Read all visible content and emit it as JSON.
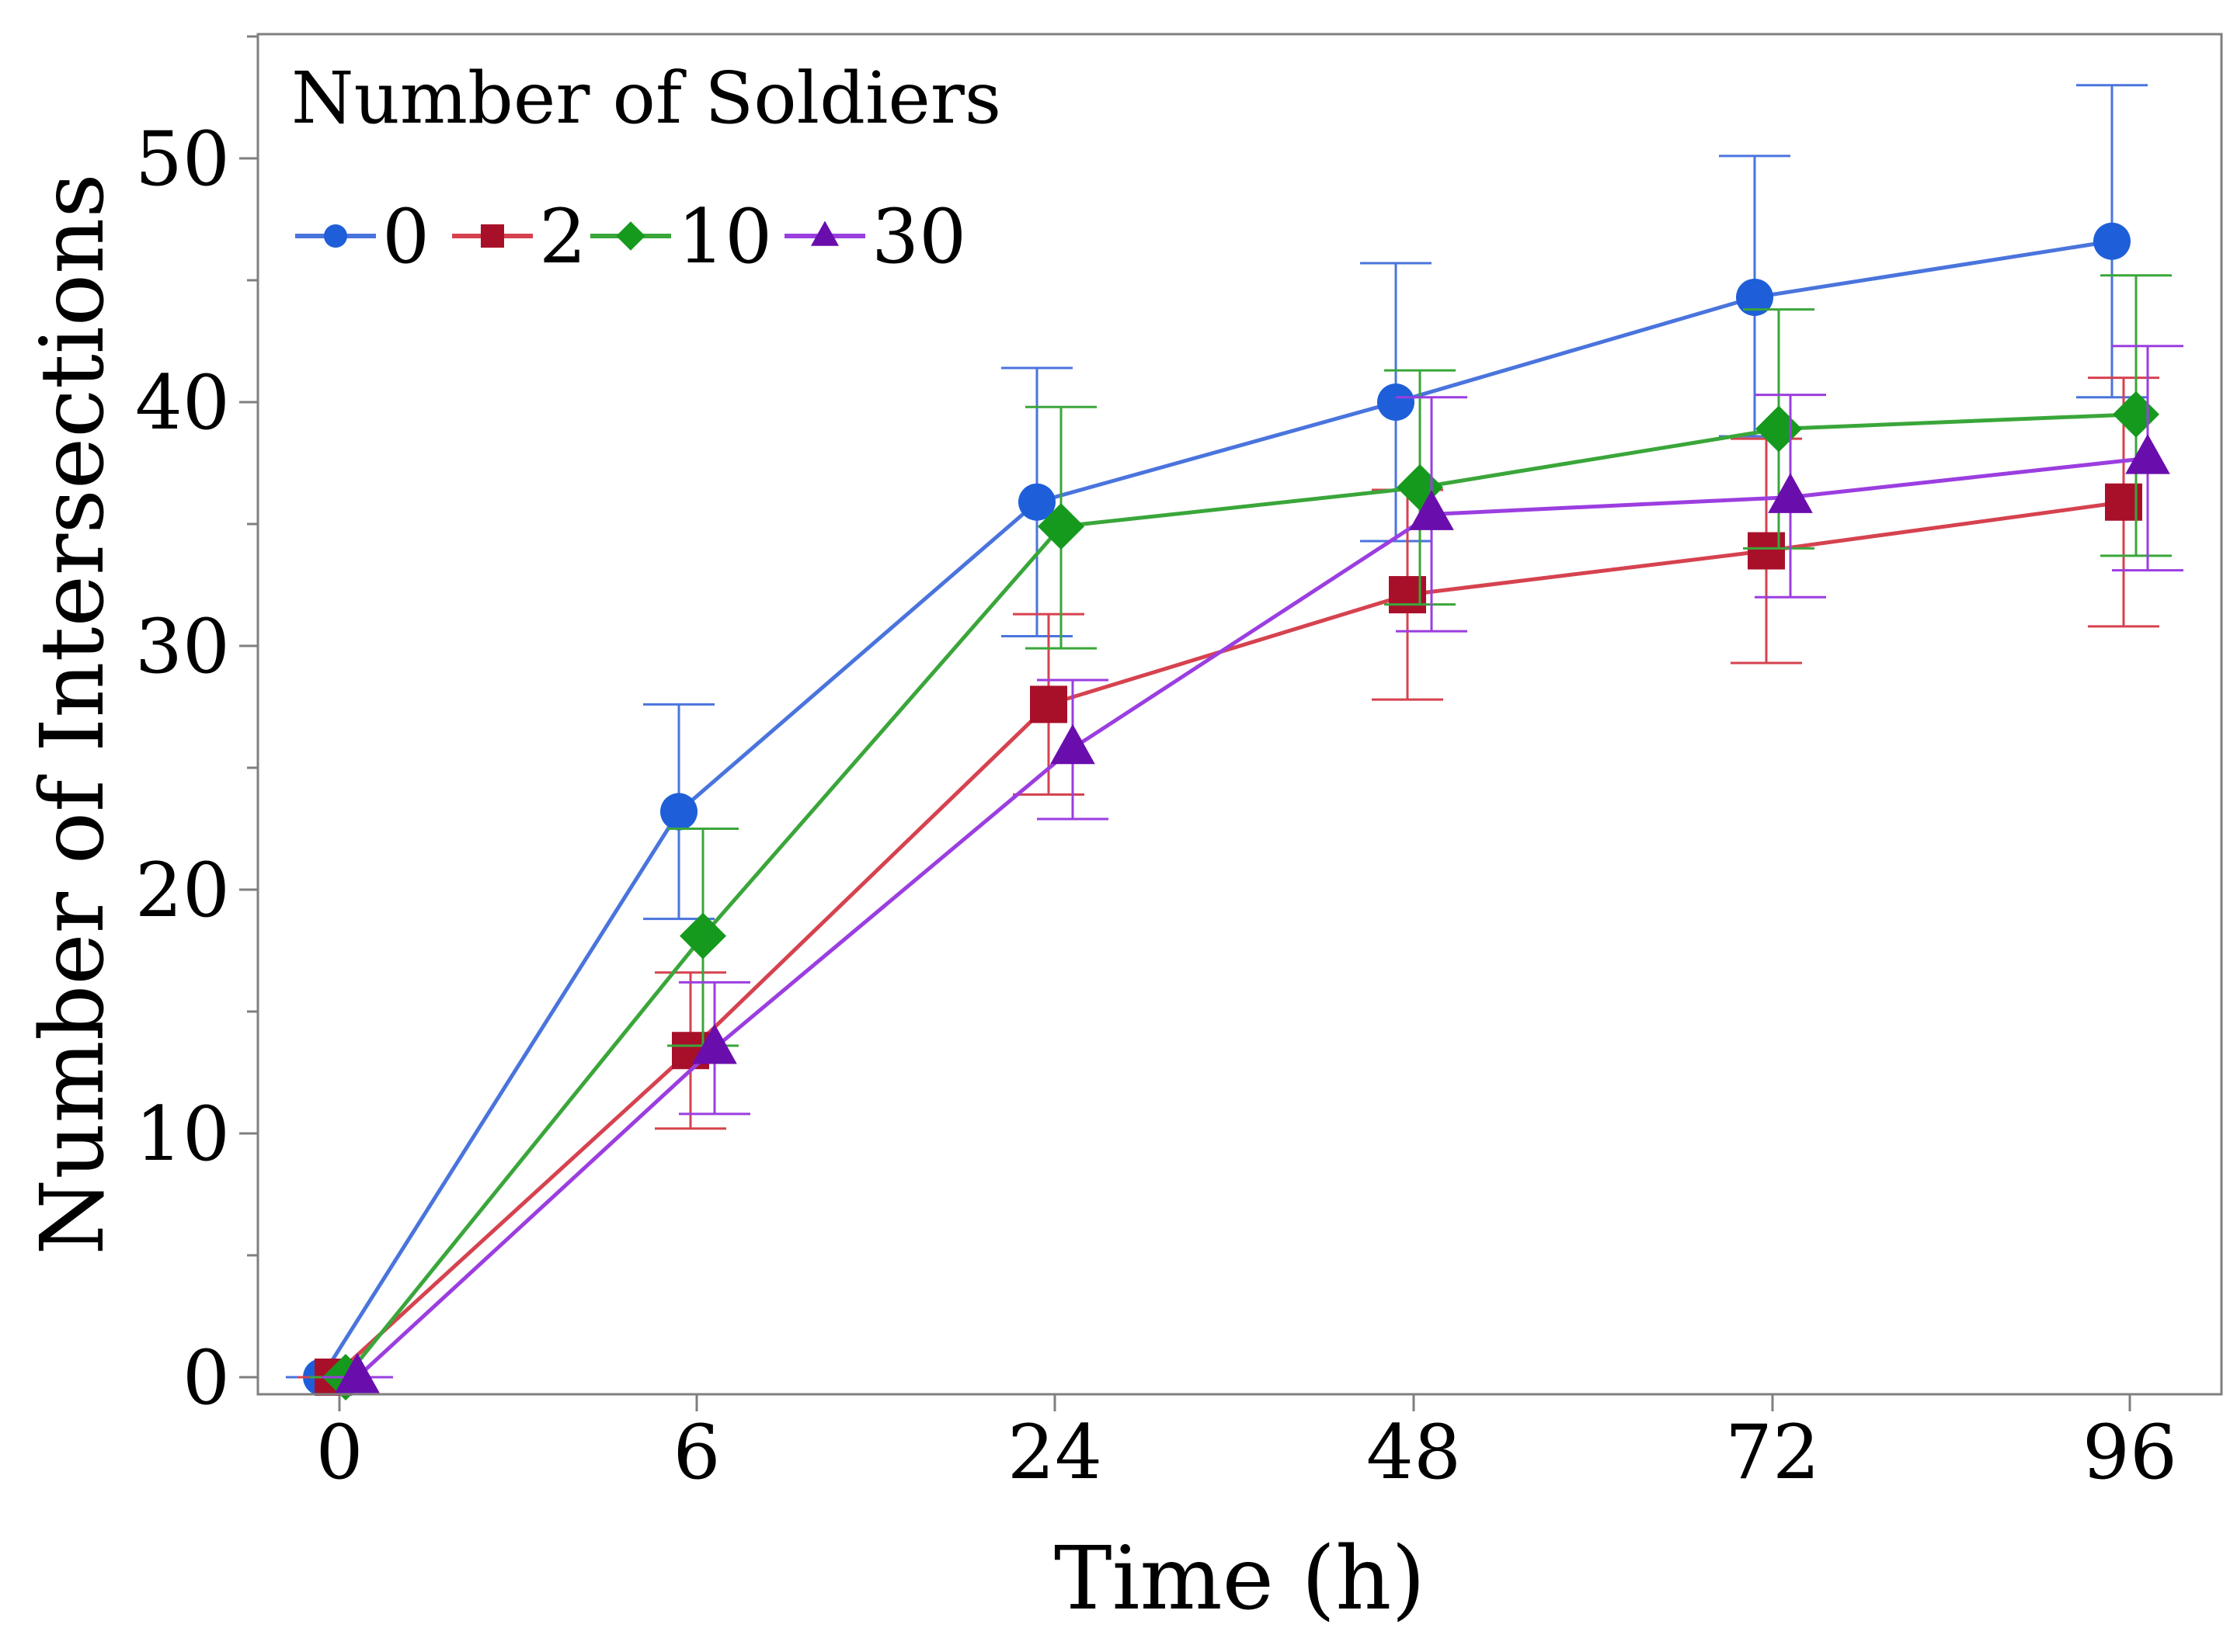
{
  "chart_data": {
    "type": "line",
    "title": "",
    "xlabel": "Time (h)",
    "ylabel": "Number of Intersections",
    "categories": [
      "0",
      "6",
      "24",
      "48",
      "72",
      "96"
    ],
    "ylim": [
      0,
      55
    ],
    "yticks": [
      0,
      10,
      20,
      30,
      40,
      50
    ],
    "legend": {
      "title": "Number of Soldiers",
      "position": "top-left"
    },
    "series": [
      {
        "name": "0",
        "color": "#1e5fd9",
        "line_color": "#4a74dd",
        "marker": "circle",
        "values": [
          0,
          23.2,
          35.9,
          40.0,
          44.3,
          46.6
        ],
        "err_low": [
          0,
          18.8,
          30.4,
          34.3,
          38.6,
          40.2
        ],
        "err_high": [
          0,
          27.6,
          41.4,
          45.7,
          50.1,
          53.0
        ]
      },
      {
        "name": "2",
        "color": "#a8102a",
        "line_color": "#d6424f",
        "marker": "square",
        "values": [
          0,
          13.4,
          27.6,
          32.1,
          33.9,
          35.9
        ],
        "err_low": [
          0,
          10.2,
          23.9,
          27.8,
          29.3,
          30.8
        ],
        "err_high": [
          0,
          16.6,
          31.3,
          36.4,
          38.5,
          41.0
        ]
      },
      {
        "name": "10",
        "color": "#169a1d",
        "line_color": "#3aa63a",
        "marker": "diamond",
        "values": [
          0,
          18.1,
          34.9,
          36.5,
          38.9,
          39.5
        ],
        "err_low": [
          0,
          13.6,
          29.9,
          31.7,
          34.0,
          33.7
        ],
        "err_high": [
          0,
          22.5,
          39.8,
          41.3,
          43.8,
          45.2
        ]
      },
      {
        "name": "30",
        "color": "#6a0dad",
        "line_color": "#9b3ee0",
        "marker": "triangle",
        "values": [
          0,
          13.5,
          25.8,
          35.4,
          36.1,
          37.7
        ],
        "err_low": [
          0,
          10.8,
          22.9,
          30.6,
          32.0,
          33.1
        ],
        "err_high": [
          0,
          16.2,
          28.6,
          40.2,
          40.3,
          42.3
        ]
      }
    ]
  }
}
